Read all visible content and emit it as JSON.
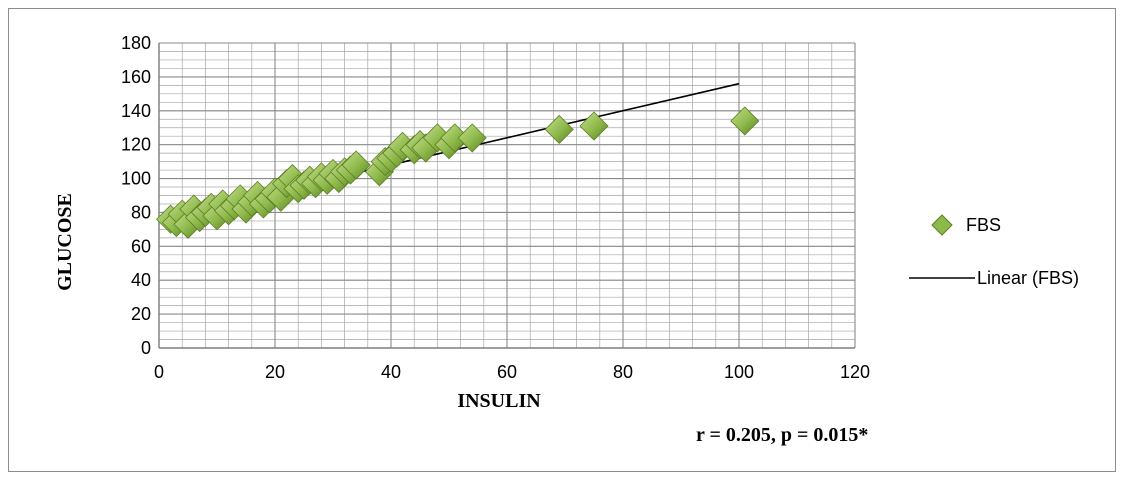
{
  "chart_data": {
    "type": "scatter",
    "xlabel": "INSULIN",
    "ylabel": "GLUCOSE",
    "xlim": [
      0,
      120
    ],
    "ylim": [
      0,
      180
    ],
    "x_ticks": [
      0,
      20,
      40,
      60,
      80,
      100,
      120
    ],
    "y_ticks": [
      0,
      20,
      40,
      60,
      80,
      100,
      120,
      140,
      160,
      180
    ],
    "grid": "major and minor",
    "legend_position": "right",
    "annotation": "r = 0.205, p = 0.015*",
    "colors": {
      "marker": "#8db84a",
      "marker_dark": "#5b7f23",
      "trendline": "#000000",
      "grid": "#a6a6a6"
    },
    "series": [
      {
        "name": "FBS",
        "marker": "diamond",
        "points": [
          [
            2,
            76
          ],
          [
            3,
            74
          ],
          [
            4,
            79
          ],
          [
            5,
            73
          ],
          [
            6,
            82
          ],
          [
            7,
            77
          ],
          [
            8,
            80
          ],
          [
            9,
            83
          ],
          [
            10,
            78
          ],
          [
            11,
            85
          ],
          [
            12,
            81
          ],
          [
            13,
            84
          ],
          [
            14,
            88
          ],
          [
            15,
            82
          ],
          [
            16,
            86
          ],
          [
            17,
            90
          ],
          [
            18,
            85
          ],
          [
            19,
            88
          ],
          [
            20,
            92
          ],
          [
            21,
            89
          ],
          [
            22,
            97
          ],
          [
            23,
            100
          ],
          [
            24,
            94
          ],
          [
            25,
            96
          ],
          [
            26,
            99
          ],
          [
            27,
            97
          ],
          [
            28,
            101
          ],
          [
            29,
            99
          ],
          [
            30,
            103
          ],
          [
            31,
            100
          ],
          [
            32,
            104
          ],
          [
            33,
            105
          ],
          [
            34,
            108
          ],
          [
            38,
            104
          ],
          [
            39,
            110
          ],
          [
            40,
            112
          ],
          [
            41,
            115
          ],
          [
            42,
            119
          ],
          [
            44,
            117
          ],
          [
            45,
            120
          ],
          [
            46,
            118
          ],
          [
            48,
            124
          ],
          [
            50,
            120
          ],
          [
            51,
            124
          ],
          [
            54,
            124
          ],
          [
            69,
            129
          ],
          [
            75,
            131
          ],
          [
            101,
            134
          ]
        ]
      },
      {
        "name": "Linear (FBS)",
        "type": "trendline",
        "points": [
          [
            3.5,
            79
          ],
          [
            100,
            156
          ]
        ]
      }
    ]
  }
}
